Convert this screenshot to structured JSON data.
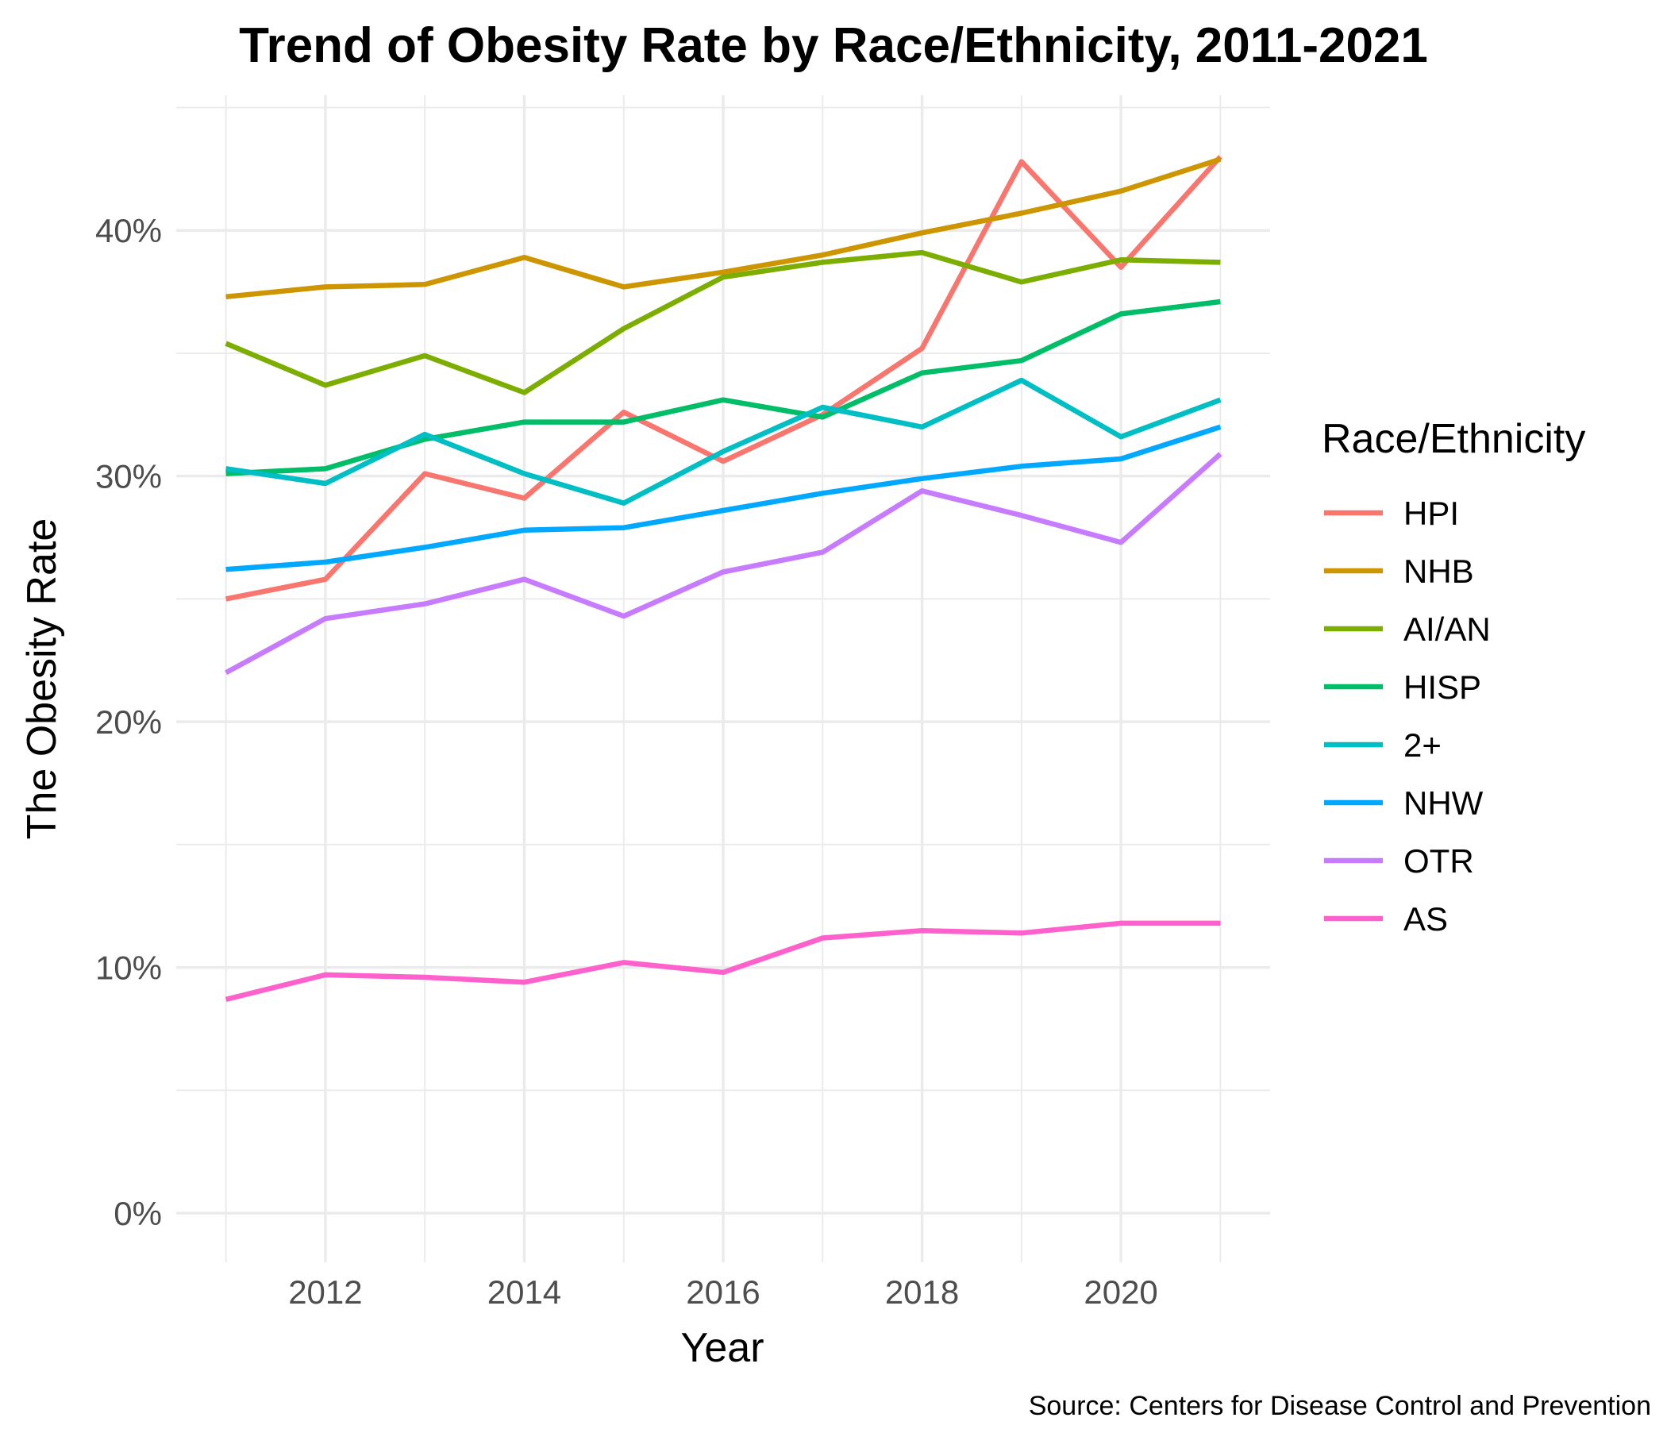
{
  "chart_data": {
    "type": "line",
    "title": "Trend of Obesity Rate by Race/Ethnicity, 2011-2021",
    "xlabel": "Year",
    "ylabel": "The Obesity Rate",
    "caption": "Source: Centers for Disease Control and Prevention",
    "legend_title": "Race/Ethnicity",
    "legend_position": "right",
    "grid": true,
    "x": [
      2011,
      2012,
      2013,
      2014,
      2015,
      2016,
      2017,
      2018,
      2019,
      2020,
      2021
    ],
    "xlim": [
      2010.5,
      2021.5
    ],
    "ylim": [
      -2,
      45.5
    ],
    "x_ticks": [
      2012,
      2014,
      2016,
      2018,
      2020
    ],
    "x_tick_labels": [
      "2012",
      "2014",
      "2016",
      "2018",
      "2020"
    ],
    "y_ticks": [
      0,
      10,
      20,
      30,
      40
    ],
    "y_tick_labels": [
      "0%",
      "10%",
      "20%",
      "30%",
      "40%"
    ],
    "series": [
      {
        "name": "HPI",
        "color": "#F8766D",
        "values": [
          25.0,
          25.8,
          30.1,
          29.1,
          32.6,
          30.6,
          32.5,
          35.2,
          42.8,
          38.5,
          43.0
        ]
      },
      {
        "name": "NHB",
        "color": "#CD9600",
        "values": [
          37.3,
          37.7,
          37.8,
          38.9,
          37.7,
          38.3,
          39.0,
          39.9,
          40.7,
          41.6,
          42.9
        ]
      },
      {
        "name": "AI/AN",
        "color": "#7CAE00",
        "values": [
          35.4,
          33.7,
          34.9,
          33.4,
          36.0,
          38.1,
          38.7,
          39.1,
          37.9,
          38.8,
          38.7
        ]
      },
      {
        "name": "HISP",
        "color": "#00BE67",
        "values": [
          30.1,
          30.3,
          31.5,
          32.2,
          32.2,
          33.1,
          32.4,
          34.2,
          34.7,
          36.6,
          37.1
        ]
      },
      {
        "name": "2+",
        "color": "#00BFC4",
        "values": [
          30.3,
          29.7,
          31.7,
          30.1,
          28.9,
          31.0,
          32.8,
          32.0,
          33.9,
          31.6,
          33.1
        ]
      },
      {
        "name": "NHW",
        "color": "#00A9FF",
        "values": [
          26.2,
          26.5,
          27.1,
          27.8,
          27.9,
          28.6,
          29.3,
          29.9,
          30.4,
          30.7,
          32.0
        ]
      },
      {
        "name": "OTR",
        "color": "#C77CFF",
        "values": [
          22.0,
          24.2,
          24.8,
          25.8,
          24.3,
          26.1,
          26.9,
          29.4,
          28.4,
          27.3,
          30.9
        ]
      },
      {
        "name": "AS",
        "color": "#FF61CC",
        "values": [
          8.7,
          9.7,
          9.6,
          9.4,
          10.2,
          9.8,
          11.2,
          11.5,
          11.4,
          11.8,
          11.8
        ]
      }
    ]
  }
}
